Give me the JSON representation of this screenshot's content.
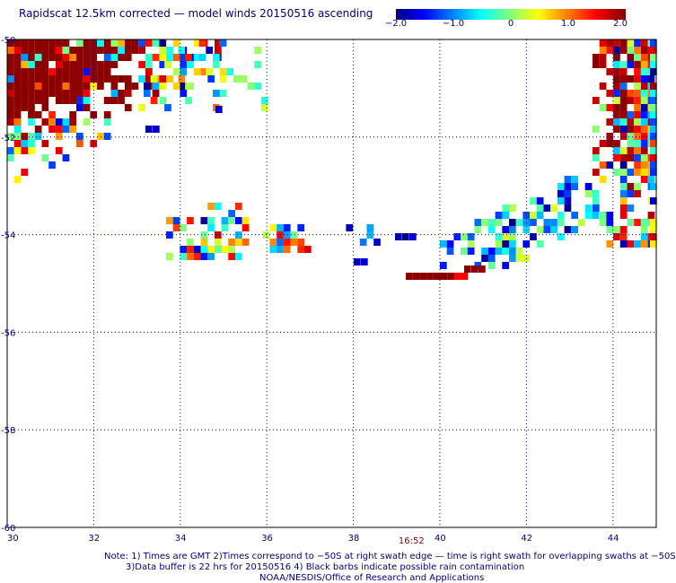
{
  "header": {
    "title": "Rapidscat 12.5km corrected — model winds 20150516 ascending"
  },
  "colorbar": {
    "ticks": [
      "−2.0",
      "−1.0",
      "0",
      "1.0",
      "2.0"
    ],
    "tick_values": [
      -2.0,
      -1.0,
      0,
      1.0,
      2.0
    ],
    "range": [
      -2.0,
      2.0
    ],
    "colors": [
      "#00007f",
      "#0000ff",
      "#00ffff",
      "#ffff00",
      "#ff0000",
      "#7f0000"
    ]
  },
  "map": {
    "lon_range": [
      30,
      45
    ],
    "lat_range": [
      -60,
      -50
    ],
    "x_ticks": [
      "30",
      "32",
      "34",
      "36",
      "38",
      "40",
      "42",
      "44"
    ],
    "x_tick_values": [
      30,
      32,
      34,
      36,
      38,
      40,
      42,
      44
    ],
    "y_ticks": [
      "-50",
      "-52",
      "-54",
      "-56",
      "-58",
      "-60"
    ],
    "y_tick_values": [
      -50,
      -52,
      -54,
      -56,
      -58,
      -60
    ],
    "time_label": "16:52",
    "time_label_lon": 39.5,
    "gridlines": true
  },
  "footer": {
    "line1": "Note: 1) Times are GMT 2)Times correspond to −50S at right swath edge — time is right swath for overlapping swaths at −50S",
    "line2": "3)Data buffer is 22 hrs for 20150516 4) Black barbs indicate possible rain contamination",
    "line3": "NOAA/NESDIS/Office of Research and Applications"
  }
}
